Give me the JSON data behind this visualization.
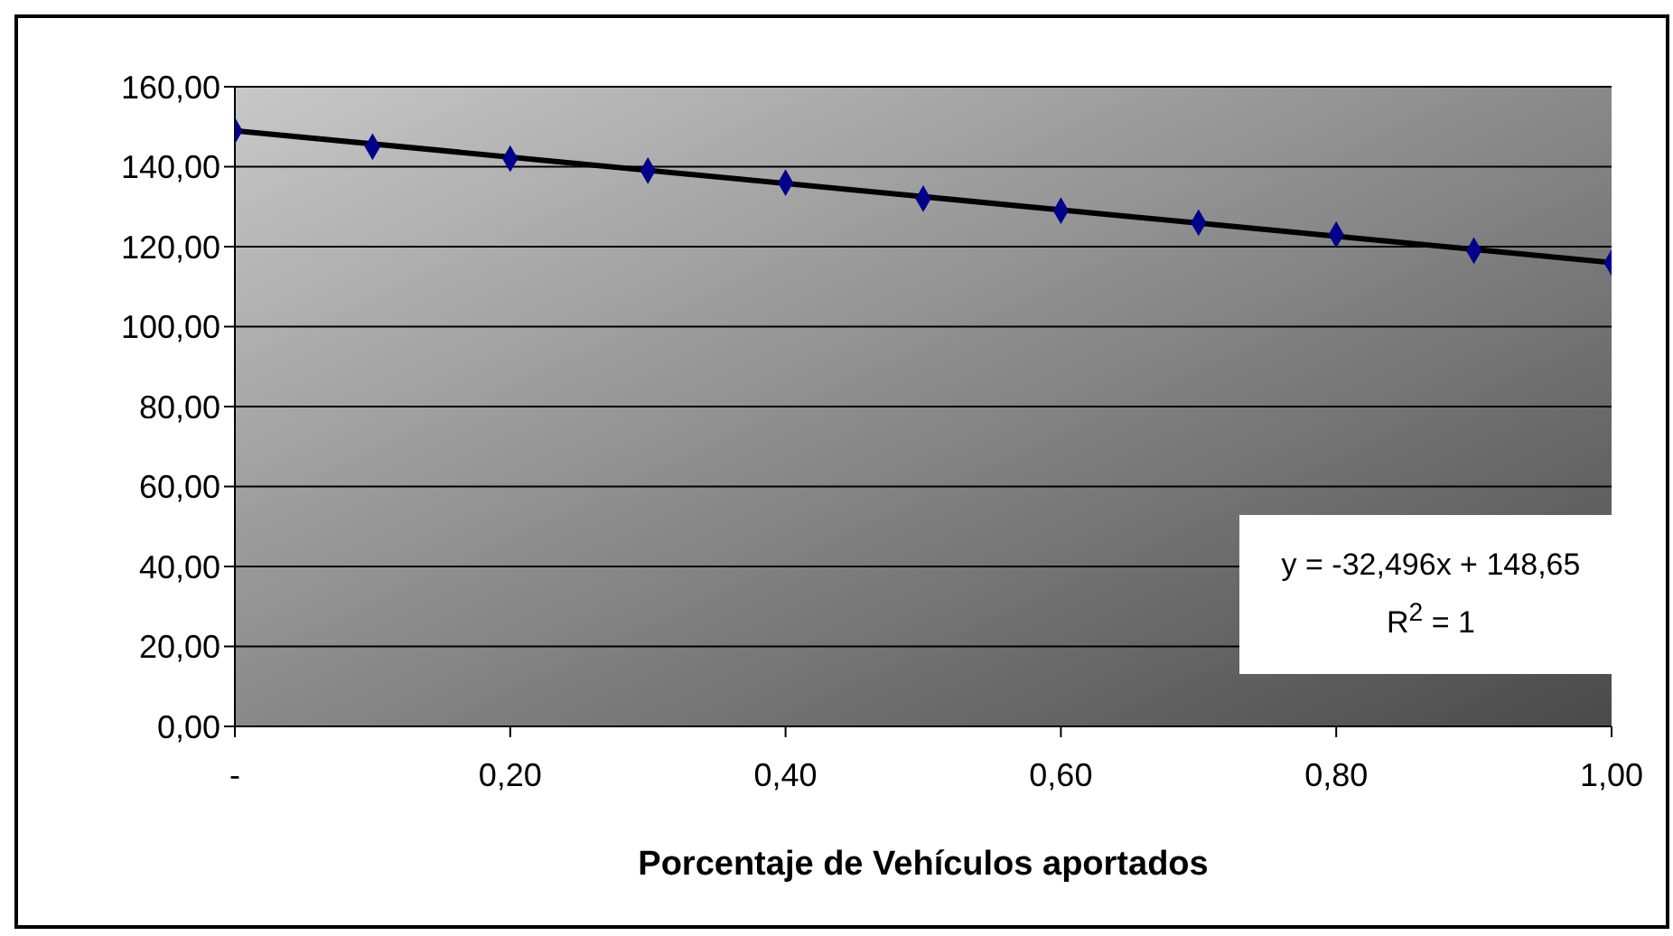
{
  "chart_data": {
    "type": "scatter",
    "xlabel": "Porcentaje de Vehículos aportados",
    "series": [
      {
        "color": "#00008b",
        "marker": "diamond",
        "x": [
          0,
          0.1,
          0.2,
          0.3,
          0.4,
          0.5,
          0.6,
          0.7,
          0.8,
          0.9,
          1.0
        ],
        "values": [
          149,
          145,
          142,
          139,
          136,
          132,
          129,
          126,
          123,
          119,
          116
        ]
      },
      {
        "type": "line",
        "color": "#000000",
        "marker": "none",
        "x": [
          0,
          1.0
        ],
        "values": [
          149,
          116
        ]
      }
    ],
    "xlim": [
      0,
      1.0
    ],
    "xticks": [
      {
        "value": 0,
        "label": "-"
      },
      {
        "value": 0.2,
        "label": "0,20"
      },
      {
        "value": 0.4,
        "label": "0,40"
      },
      {
        "value": 0.6,
        "label": "0,60"
      },
      {
        "value": 0.8,
        "label": "0,80"
      },
      {
        "value": 1.0,
        "label": "1,00"
      }
    ],
    "ylim": [
      0,
      160
    ],
    "yticks": [
      {
        "value": 0,
        "label": "0,00"
      },
      {
        "value": 20,
        "label": "20,00"
      },
      {
        "value": 40,
        "label": "40,00"
      },
      {
        "value": 60,
        "label": "60,00"
      },
      {
        "value": 80,
        "label": "80,00"
      },
      {
        "value": 100,
        "label": "100,00"
      },
      {
        "value": 120,
        "label": "120,00"
      },
      {
        "value": 140,
        "label": "140,00"
      },
      {
        "value": 160,
        "label": "160,00"
      }
    ],
    "grid": "y",
    "annotations": [
      "y = -32,496x + 148,65",
      "R$^{2}$ = 1"
    ]
  }
}
